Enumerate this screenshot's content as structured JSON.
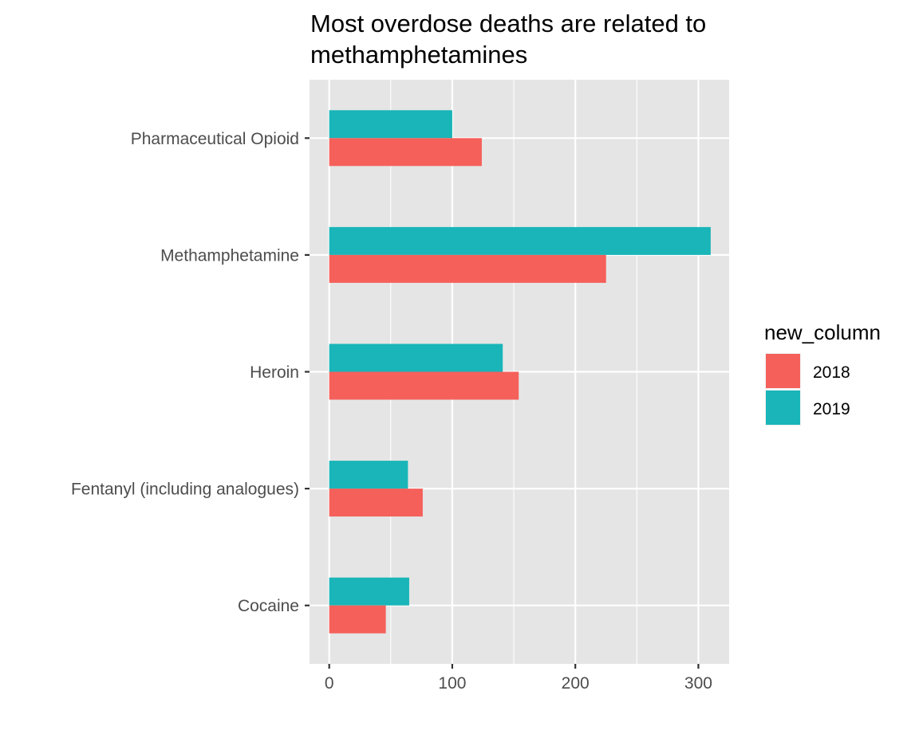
{
  "chart_data": {
    "type": "bar",
    "orientation": "horizontal",
    "title_lines": [
      "Most overdose deaths are related to",
      "methamphetamines"
    ],
    "xlabel": "",
    "ylabel": "",
    "categories": [
      "Pharmaceutical Opioid",
      "Methamphetamine",
      "Heroin",
      "Fentanyl (including analogues)",
      "Cocaine"
    ],
    "series": [
      {
        "name": "2019",
        "color": "#19B5B8",
        "values": [
          100,
          310,
          141,
          64,
          65
        ]
      },
      {
        "name": "2018",
        "color": "#F5605B",
        "values": [
          124,
          225,
          154,
          76,
          46
        ]
      }
    ],
    "xlim": [
      -16,
      325
    ],
    "xticks": [
      0,
      100,
      200,
      300
    ],
    "xtick_labels": [
      "0",
      "100",
      "200",
      "300"
    ],
    "grid": true,
    "panel_background": "#E5E5E5",
    "grid_color": "#FFFFFF",
    "legend": {
      "title": "new_column",
      "placement": "right",
      "entries": [
        {
          "label": "2018",
          "color": "#F5605B"
        },
        {
          "label": "2019",
          "color": "#19B5B8"
        }
      ]
    }
  }
}
